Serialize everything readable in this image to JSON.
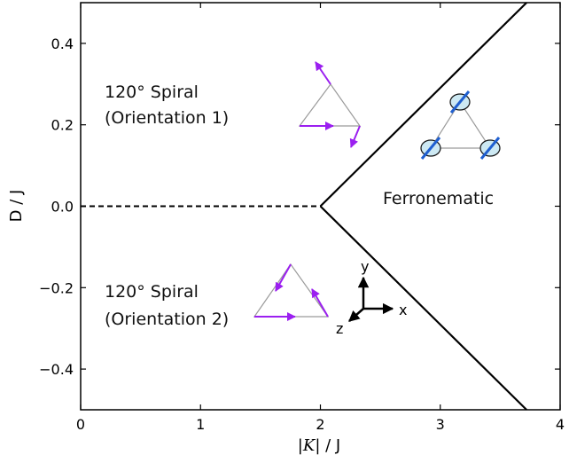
{
  "chart_data": {
    "type": "line",
    "title": "",
    "xlabel": {
      "k": "K",
      "rest": " / J"
    },
    "ylabel": "D / J",
    "xlim": [
      0,
      4
    ],
    "ylim": [
      -0.5,
      0.5
    ],
    "xticks": [
      0,
      1,
      2,
      3,
      4
    ],
    "yticks": [
      -0.4,
      -0.2,
      0.0,
      0.2,
      0.4
    ],
    "xtick_labels": [
      "0",
      "1",
      "2",
      "3",
      "4"
    ],
    "ytick_labels": [
      "−0.4",
      "−0.2",
      "0.0",
      "0.2",
      "0.4"
    ],
    "grid": false,
    "series": [
      {
        "style": "solid",
        "color": "#000000",
        "x": [
          3.72,
          2.0
        ],
        "y": [
          0.5,
          0.0
        ]
      },
      {
        "style": "solid",
        "color": "#000000",
        "x": [
          2.0,
          3.72
        ],
        "y": [
          0.0,
          -0.5
        ]
      },
      {
        "style": "dashed",
        "color": "#000000",
        "x": [
          0.0,
          2.0
        ],
        "y": [
          0.0,
          0.0
        ]
      }
    ],
    "annotations": {
      "spiral1": {
        "line1": "120° Spiral",
        "line2": "(Orientation 1)"
      },
      "spiral2": {
        "line1": "120° Spiral",
        "line2": "(Orientation 2)"
      },
      "ferronematic": "Ferronematic",
      "axes_inset": {
        "x": "x",
        "y": "y",
        "z": "z"
      }
    },
    "colors": {
      "spin_arrow": "#9b1ff0",
      "director": "#1f5fd0",
      "ellipse_fill": "#cde9f3"
    }
  }
}
